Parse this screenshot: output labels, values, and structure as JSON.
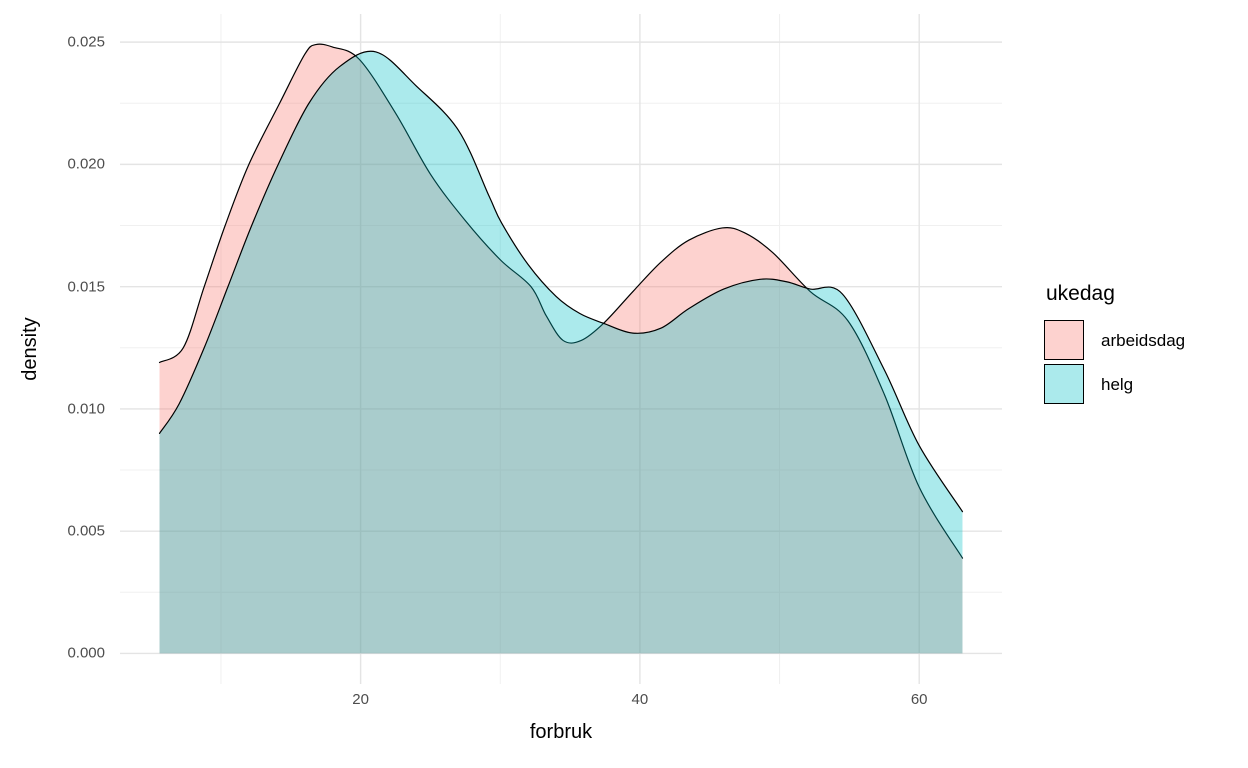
{
  "chart_data": {
    "type": "area",
    "subtype": "density",
    "title": "",
    "xlabel": "forbruk",
    "ylabel": "density",
    "fill_alpha": 0.33,
    "stroke_color": "#000000",
    "grid": {
      "major_color": "#e4e4e4",
      "minor_color": "#f0f0f0",
      "background": "#ffffff"
    },
    "x_axis": {
      "range": [
        2.77,
        65.93
      ],
      "ticks": [
        {
          "value": 20,
          "label": "20"
        },
        {
          "value": 40,
          "label": "40"
        },
        {
          "value": 60,
          "label": "60"
        }
      ],
      "minor": [
        10,
        30,
        50
      ]
    },
    "y_axis": {
      "range": [
        -0.00125,
        0.02615
      ],
      "ticks": [
        {
          "value": 0.0,
          "label": "0.000"
        },
        {
          "value": 0.005,
          "label": "0.005"
        },
        {
          "value": 0.01,
          "label": "0.010"
        },
        {
          "value": 0.015,
          "label": "0.015"
        },
        {
          "value": 0.02,
          "label": "0.020"
        },
        {
          "value": 0.025,
          "label": "0.025"
        }
      ],
      "minor": [
        0.0025,
        0.0075,
        0.0125,
        0.0175,
        0.0225
      ]
    },
    "legend": {
      "title": "ukedag",
      "position": "right",
      "entries": [
        {
          "label": "arbeidsdag",
          "color": "#F8766D"
        },
        {
          "label": "helg",
          "color": "#00BFC4"
        }
      ]
    },
    "series": [
      {
        "name": "arbeidsdag",
        "color": "#F8766D",
        "points": [
          [
            5.6,
            0.0119
          ],
          [
            7.3,
            0.0125
          ],
          [
            8.8,
            0.015
          ],
          [
            10.3,
            0.0175
          ],
          [
            12.0,
            0.02
          ],
          [
            14.2,
            0.0225
          ],
          [
            16.0,
            0.0245
          ],
          [
            16.8,
            0.0249
          ],
          [
            18.0,
            0.0248
          ],
          [
            19.9,
            0.0243
          ],
          [
            22.5,
            0.0221
          ],
          [
            25.0,
            0.0196
          ],
          [
            27.5,
            0.0177
          ],
          [
            30.0,
            0.0161
          ],
          [
            32.2,
            0.015
          ],
          [
            33.3,
            0.0138
          ],
          [
            34.5,
            0.0128
          ],
          [
            35.8,
            0.0128
          ],
          [
            37.4,
            0.0135
          ],
          [
            39.5,
            0.0148
          ],
          [
            41.5,
            0.016
          ],
          [
            43.5,
            0.0169
          ],
          [
            45.9,
            0.0174
          ],
          [
            47.5,
            0.0172
          ],
          [
            49.5,
            0.0164
          ],
          [
            52.2,
            0.0148
          ],
          [
            54.9,
            0.0136
          ],
          [
            57.5,
            0.0106
          ],
          [
            60.0,
            0.0068
          ],
          [
            63.1,
            0.0039
          ]
        ]
      },
      {
        "name": "helg",
        "color": "#00BFC4",
        "points": [
          [
            5.6,
            0.009
          ],
          [
            7.0,
            0.0102
          ],
          [
            8.8,
            0.0125
          ],
          [
            10.5,
            0.015
          ],
          [
            12.2,
            0.0175
          ],
          [
            14.1,
            0.02
          ],
          [
            16.3,
            0.0225
          ],
          [
            18.5,
            0.024
          ],
          [
            21.1,
            0.0246
          ],
          [
            24.0,
            0.0232
          ],
          [
            27.0,
            0.0214
          ],
          [
            29.2,
            0.0187
          ],
          [
            30.1,
            0.0176
          ],
          [
            32.0,
            0.0159
          ],
          [
            34.0,
            0.0146
          ],
          [
            35.7,
            0.0139
          ],
          [
            37.4,
            0.0135
          ],
          [
            39.5,
            0.0131
          ],
          [
            41.5,
            0.0133
          ],
          [
            43.5,
            0.0141
          ],
          [
            46.0,
            0.0149
          ],
          [
            48.6,
            0.0153
          ],
          [
            50.5,
            0.0152
          ],
          [
            52.2,
            0.0149
          ],
          [
            54.5,
            0.0147
          ],
          [
            57.5,
            0.0116
          ],
          [
            60.0,
            0.0085
          ],
          [
            63.1,
            0.0058
          ]
        ]
      }
    ]
  }
}
